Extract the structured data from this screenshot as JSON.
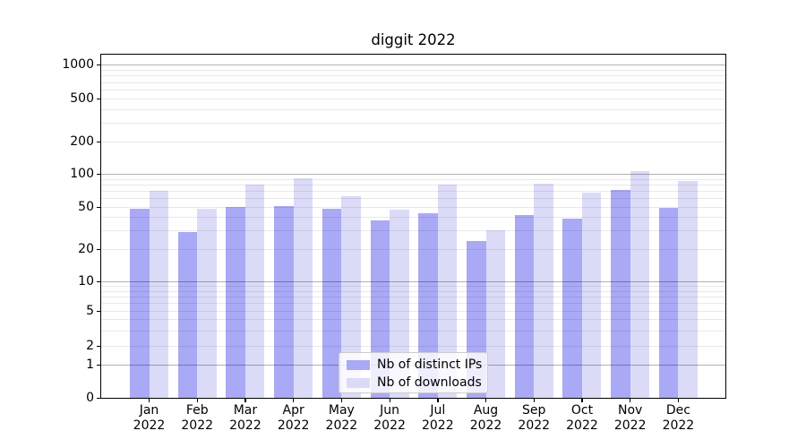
{
  "chart_data": {
    "type": "bar",
    "title": "diggit 2022",
    "categories": [
      "Jan",
      "Feb",
      "Mar",
      "Apr",
      "May",
      "Jun",
      "Jul",
      "Aug",
      "Sep",
      "Oct",
      "Nov",
      "Dec"
    ],
    "category_year_line": "2022",
    "series": [
      {
        "name": "Nb of distinct IPs",
        "color": "#a9a9f5",
        "values": [
          48,
          29,
          50,
          51,
          48,
          37,
          44,
          24,
          42,
          39,
          71,
          49
        ]
      },
      {
        "name": "Nb of downloads",
        "color": "#dbdbf8",
        "values": [
          70,
          48,
          80,
          91,
          63,
          47,
          80,
          30,
          81,
          68,
          106,
          86
        ]
      }
    ],
    "xlabel": "",
    "ylabel": "",
    "yscale": "log-like with zero baseline",
    "ylim": [
      0,
      1200
    ],
    "y_tick_values": [
      0,
      1,
      2,
      5,
      10,
      20,
      50,
      100,
      200,
      500,
      1000
    ],
    "y_major_grid_values": [
      1,
      10,
      100,
      1000
    ],
    "y_minor_grid_values": [
      2,
      3,
      4,
      5,
      6,
      7,
      8,
      9,
      20,
      30,
      40,
      50,
      60,
      70,
      80,
      90,
      200,
      300,
      400,
      500,
      600,
      700,
      800,
      900
    ],
    "grid": true,
    "legend_position": "lower center"
  },
  "colors": {
    "series1": "#a9a9f5",
    "series2": "#dbdbf8",
    "major_grid": "#b3b3b3",
    "minor_grid": "#e8e8e8",
    "axis": "#000000",
    "legend_border": "#cccccc",
    "background": "#ffffff"
  }
}
